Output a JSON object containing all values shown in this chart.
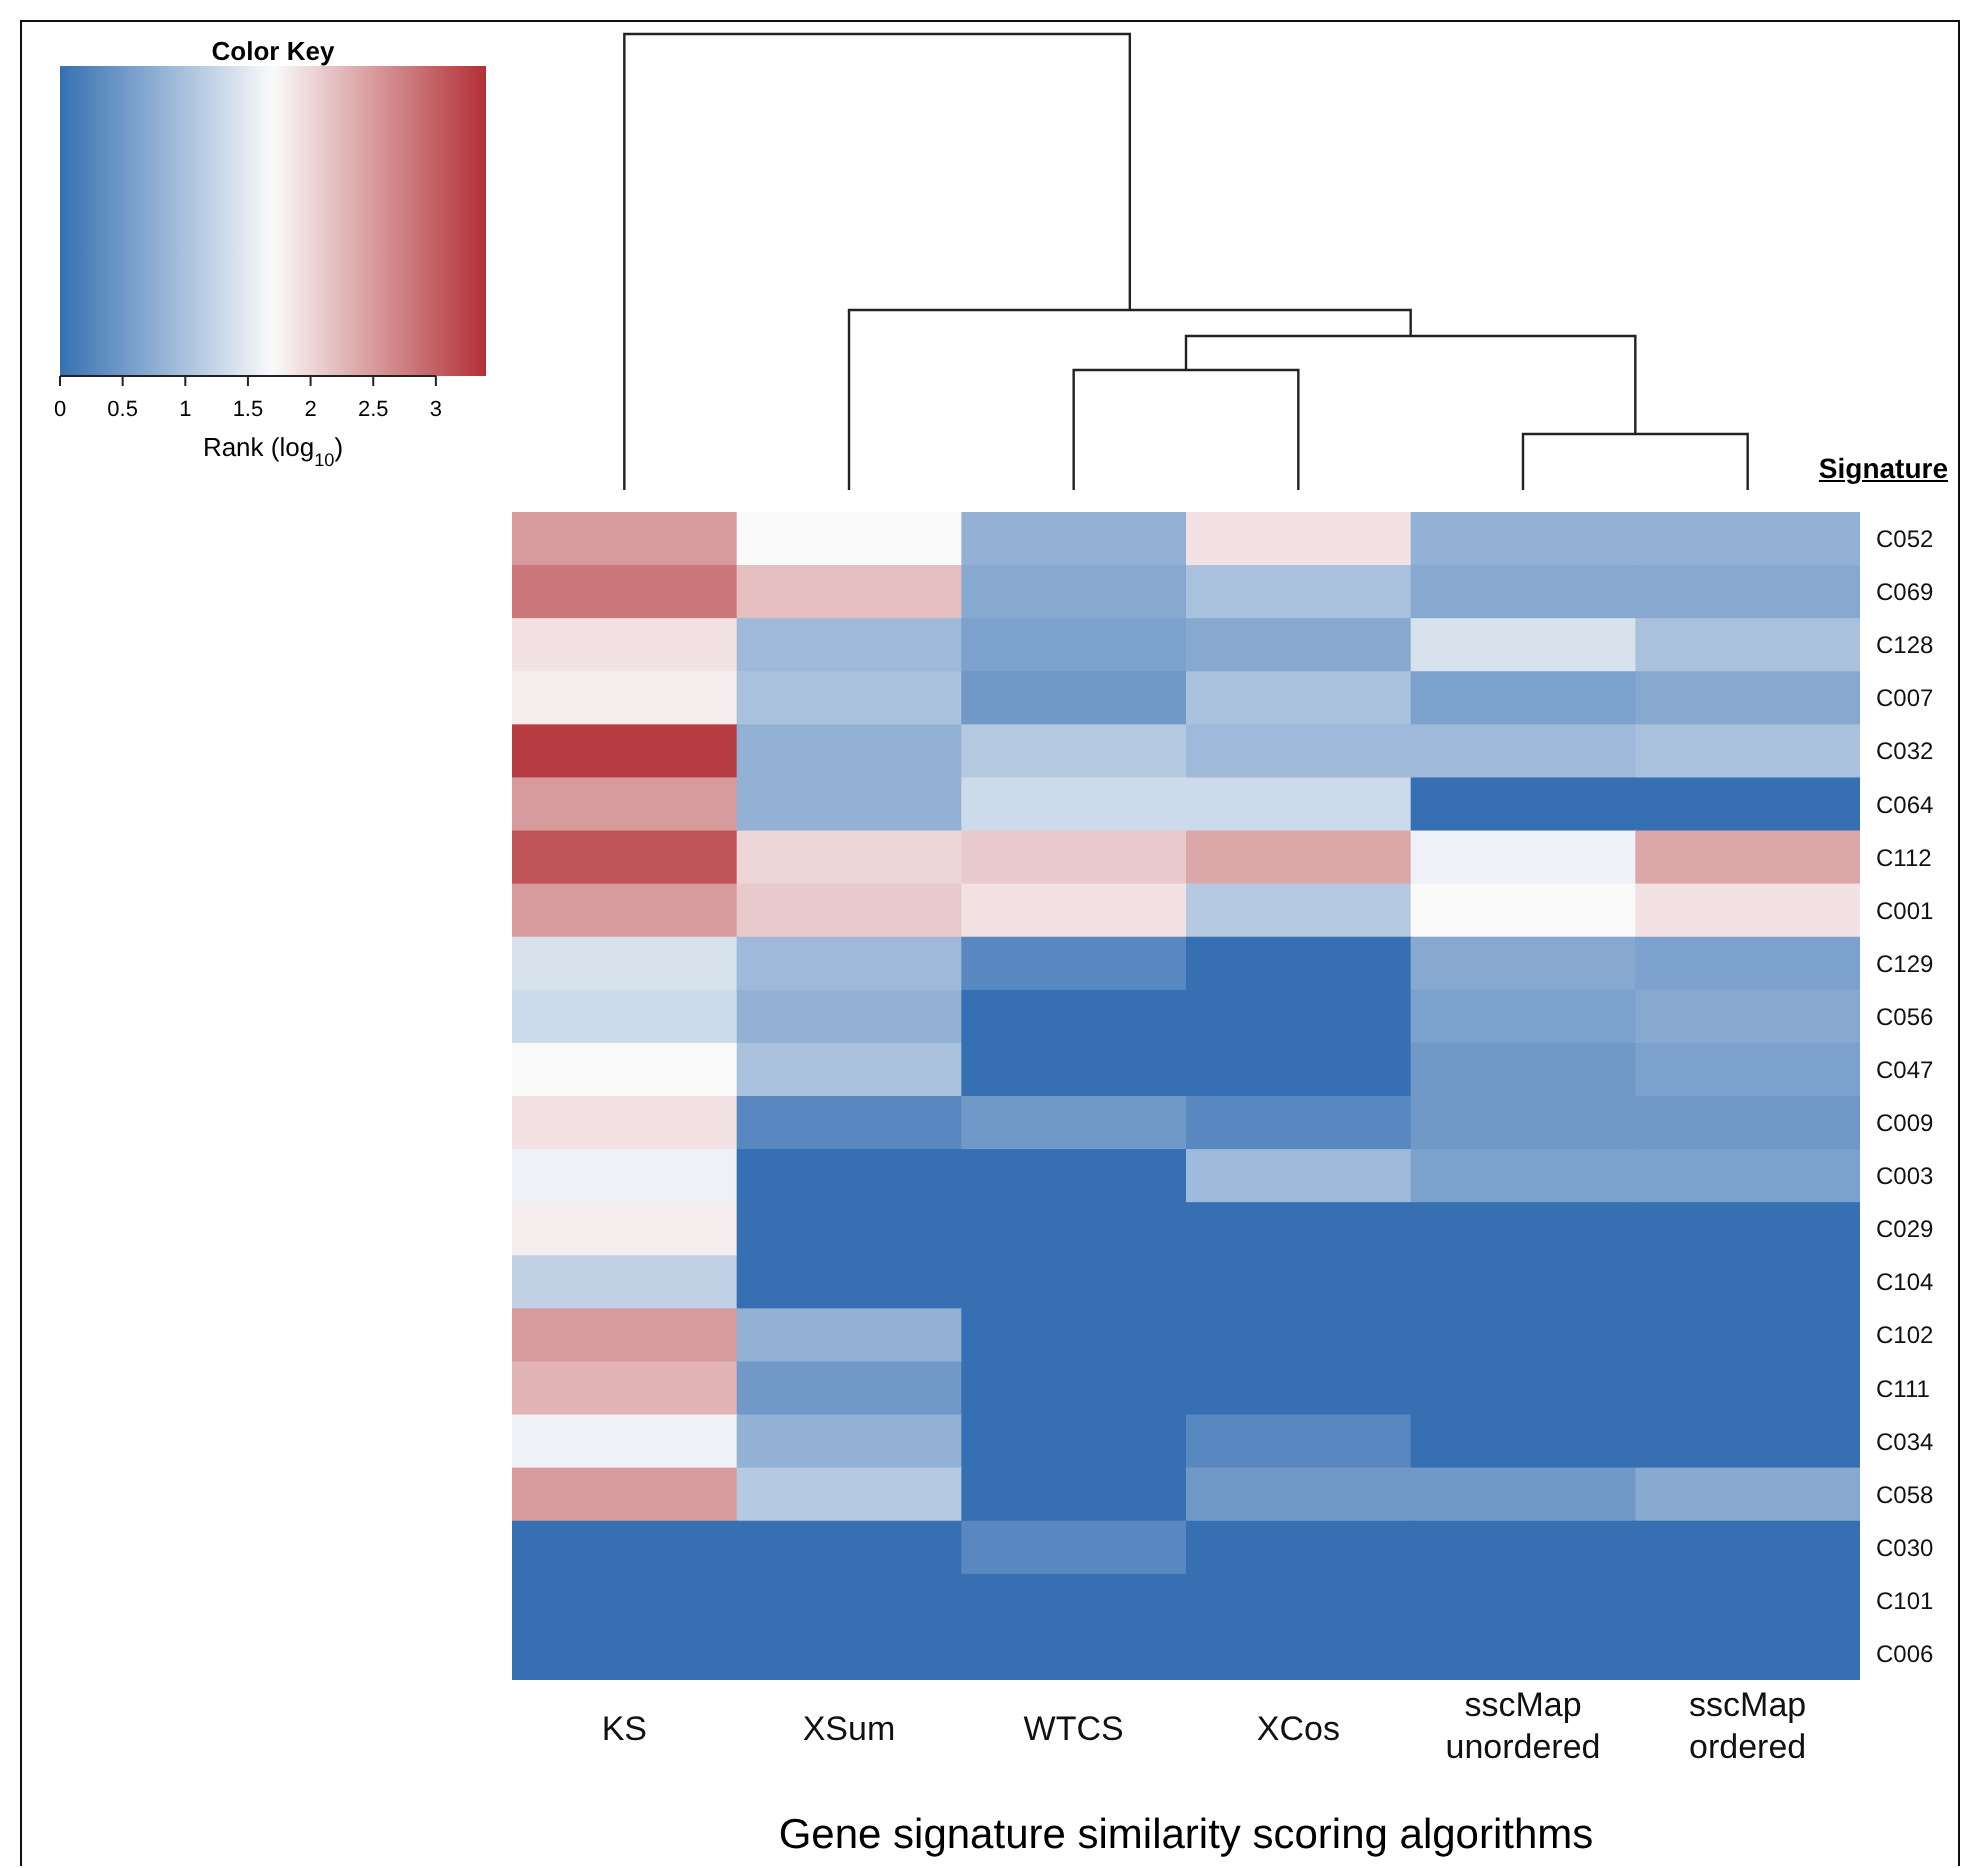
{
  "chart_data": {
    "type": "heatmap",
    "legend_title": "Color Key",
    "clabel": "Rank (log$_{10}$)",
    "xlabel": "Gene signature similarity scoring algorithms",
    "ylabel": "Signature",
    "categories": [
      "KS",
      "XSum",
      "WTCS",
      "XCos",
      "sscMap unordered",
      "sscMap ordered"
    ],
    "y_categories": [
      "C052",
      "C069",
      "C128",
      "C007",
      "C032",
      "C064",
      "C112",
      "C001",
      "C129",
      "C056",
      "C047",
      "C009",
      "C003",
      "C029",
      "C104",
      "C102",
      "C111",
      "C034",
      "C058",
      "C030",
      "C101",
      "C006"
    ],
    "cells": [
      [
        2.5,
        1.7,
        0.8,
        1.9,
        0.8,
        0.8
      ],
      [
        2.8,
        2.2,
        0.7,
        1.0,
        0.7,
        0.7
      ],
      [
        1.9,
        0.9,
        0.6,
        0.7,
        1.4,
        1.0
      ],
      [
        1.8,
        1.0,
        0.5,
        1.0,
        0.6,
        0.7
      ],
      [
        3.3,
        0.8,
        1.1,
        0.9,
        0.9,
        1.0
      ],
      [
        2.5,
        0.8,
        1.3,
        1.3,
        0,
        0
      ],
      [
        3.1,
        2.0,
        2.1,
        2.4,
        1.6,
        2.4
      ],
      [
        2.5,
        2.1,
        1.9,
        1.1,
        1.7,
        1.9
      ],
      [
        1.4,
        0.9,
        0.3,
        0,
        0.7,
        0.6
      ],
      [
        1.3,
        0.8,
        0,
        0,
        0.6,
        0.7
      ],
      [
        1.7,
        1.0,
        0,
        0,
        0.5,
        0.6
      ],
      [
        1.9,
        0.3,
        0.5,
        0.3,
        0.5,
        0.5
      ],
      [
        1.6,
        0,
        0,
        0.9,
        0.6,
        0.6
      ],
      [
        1.8,
        0,
        0,
        0,
        0,
        0
      ],
      [
        1.2,
        0,
        0,
        0,
        0,
        0
      ],
      [
        2.5,
        0.8,
        0,
        0,
        0,
        0
      ],
      [
        2.3,
        0.5,
        0,
        0,
        0,
        0
      ],
      [
        1.6,
        0.8,
        0,
        0.3,
        0,
        0
      ],
      [
        2.5,
        1.1,
        0,
        0.5,
        0.5,
        0.7
      ],
      [
        0,
        0,
        0.3,
        0,
        0,
        0
      ],
      [
        0,
        0,
        0,
        0,
        0,
        0
      ],
      [
        0,
        0,
        0,
        0,
        0,
        0
      ]
    ],
    "clim": [
      0,
      3.4
    ],
    "cticks": [
      0,
      0.5,
      1,
      1.5,
      2,
      2.5,
      3
    ]
  }
}
